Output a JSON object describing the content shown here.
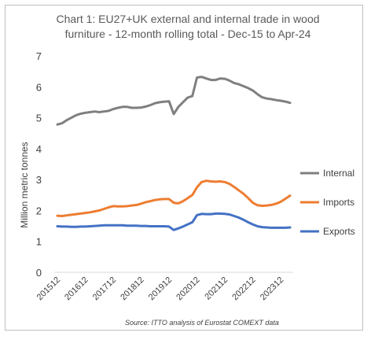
{
  "chart_data": {
    "type": "line",
    "title_lines": [
      "Chart 1: EU27+UK external and internal trade in wood",
      "furniture - 12-month rolling total  - Dec-15 to Apr-24"
    ],
    "ylabel": "Million metric tonnes",
    "ylim": [
      0,
      7
    ],
    "yticks": [
      "0",
      "1",
      "2",
      "3",
      "4",
      "5",
      "6",
      "7"
    ],
    "grid": false,
    "legend_position": "right",
    "x_tick_labels": [
      "201512",
      "201612",
      "201712",
      "201812",
      "201912",
      "202012",
      "202112",
      "202212",
      "202312"
    ],
    "x": [
      "201512",
      "201602",
      "201604",
      "201606",
      "201608",
      "201610",
      "201612",
      "201702",
      "201704",
      "201706",
      "201708",
      "201710",
      "201712",
      "201802",
      "201804",
      "201806",
      "201808",
      "201810",
      "201812",
      "201902",
      "201904",
      "201906",
      "201908",
      "201910",
      "201912",
      "202002",
      "202004",
      "202006",
      "202008",
      "202010",
      "202012",
      "202102",
      "202104",
      "202106",
      "202108",
      "202110",
      "202112",
      "202202",
      "202204",
      "202206",
      "202208",
      "202210",
      "202212",
      "202302",
      "202304",
      "202306",
      "202308",
      "202310",
      "202312",
      "202402",
      "202404"
    ],
    "series": [
      {
        "name": "Internal",
        "color": "#7f7f7f",
        "values": [
          4.78,
          4.82,
          4.92,
          5.0,
          5.08,
          5.13,
          5.16,
          5.18,
          5.2,
          5.18,
          5.2,
          5.22,
          5.28,
          5.32,
          5.35,
          5.35,
          5.32,
          5.32,
          5.33,
          5.36,
          5.41,
          5.47,
          5.5,
          5.52,
          5.53,
          5.12,
          5.35,
          5.5,
          5.65,
          5.7,
          6.3,
          6.32,
          6.27,
          6.22,
          6.22,
          6.27,
          6.26,
          6.2,
          6.12,
          6.08,
          6.02,
          5.96,
          5.88,
          5.76,
          5.66,
          5.62,
          5.6,
          5.57,
          5.55,
          5.52,
          5.48
        ]
      },
      {
        "name": "Imports",
        "color": "#ed7d31",
        "values": [
          1.83,
          1.82,
          1.84,
          1.86,
          1.88,
          1.9,
          1.92,
          1.94,
          1.97,
          2.0,
          2.05,
          2.1,
          2.14,
          2.13,
          2.13,
          2.14,
          2.16,
          2.18,
          2.22,
          2.27,
          2.3,
          2.34,
          2.36,
          2.37,
          2.37,
          2.25,
          2.23,
          2.3,
          2.4,
          2.5,
          2.75,
          2.92,
          2.96,
          2.94,
          2.93,
          2.94,
          2.92,
          2.86,
          2.76,
          2.65,
          2.54,
          2.4,
          2.25,
          2.17,
          2.15,
          2.16,
          2.18,
          2.22,
          2.28,
          2.38,
          2.48
        ]
      },
      {
        "name": "Exports",
        "color": "#4472c4",
        "values": [
          1.49,
          1.48,
          1.48,
          1.47,
          1.47,
          1.48,
          1.48,
          1.49,
          1.5,
          1.51,
          1.52,
          1.52,
          1.52,
          1.52,
          1.52,
          1.51,
          1.51,
          1.51,
          1.5,
          1.5,
          1.49,
          1.49,
          1.49,
          1.49,
          1.48,
          1.37,
          1.42,
          1.48,
          1.55,
          1.62,
          1.85,
          1.89,
          1.88,
          1.88,
          1.9,
          1.9,
          1.89,
          1.87,
          1.82,
          1.77,
          1.7,
          1.62,
          1.55,
          1.49,
          1.46,
          1.45,
          1.44,
          1.44,
          1.44,
          1.44,
          1.45
        ]
      }
    ],
    "source_note": "Source: ITTO analysis of Eurostat COMEXT data"
  }
}
